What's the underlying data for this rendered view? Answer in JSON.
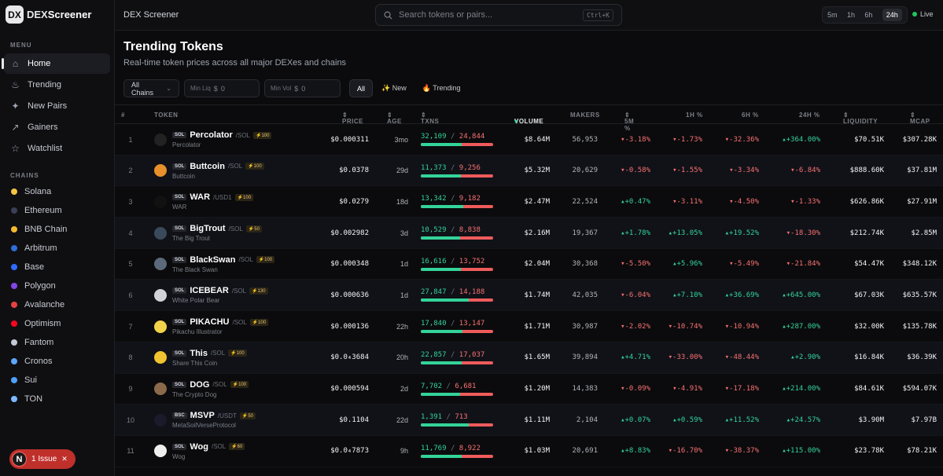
{
  "app": {
    "logo_badge": "DX",
    "logo_dex": "DEX",
    "logo_rest": "Screener",
    "title": "DEX Screener"
  },
  "sidebar": {
    "menu_label": "MENU",
    "menu": [
      {
        "label": "Home",
        "icon": "home-icon",
        "glyph": "⌂",
        "active": true
      },
      {
        "label": "Trending",
        "icon": "flame-icon",
        "glyph": "♨"
      },
      {
        "label": "New Pairs",
        "icon": "sparkle-icon",
        "glyph": "✦"
      },
      {
        "label": "Gainers",
        "icon": "trend-up-icon",
        "glyph": "↗"
      },
      {
        "label": "Watchlist",
        "icon": "star-icon",
        "glyph": "☆"
      }
    ],
    "chains_label": "CHAINS",
    "chains": [
      {
        "label": "Solana",
        "color": "#f5c542"
      },
      {
        "label": "Ethereum",
        "color": "#3b3f57"
      },
      {
        "label": "BNB Chain",
        "color": "#f3ba2f"
      },
      {
        "label": "Arbitrum",
        "color": "#2d6fd6"
      },
      {
        "label": "Base",
        "color": "#2f6bff"
      },
      {
        "label": "Polygon",
        "color": "#8247e5"
      },
      {
        "label": "Avalanche",
        "color": "#e84142"
      },
      {
        "label": "Optimism",
        "color": "#ff0420"
      },
      {
        "label": "Fantom",
        "color": "#c5c9d6"
      },
      {
        "label": "Cronos",
        "color": "#5ea6ff"
      },
      {
        "label": "Sui",
        "color": "#4da2ff"
      },
      {
        "label": "TON",
        "color": "#7fb8ff"
      }
    ],
    "issue": {
      "badge": "N",
      "label": "1 Issue",
      "close": "✕"
    }
  },
  "topbar": {
    "search_placeholder": "Search tokens or pairs...",
    "shortcut": "Ctrl+K",
    "timeframes": [
      "5m",
      "1h",
      "6h",
      "24h"
    ],
    "active_timeframe": "24h",
    "live_label": "Live"
  },
  "header": {
    "title": "Trending Tokens",
    "subtitle": "Real-time token prices across all major DEXes and chains"
  },
  "filters": {
    "chain_select": "All Chains",
    "min_liq_label": "Min Liq",
    "min_liq_prefix": "$",
    "min_liq_value": "0",
    "min_vol_label": "Min Vol",
    "min_vol_prefix": "$",
    "min_vol_value": "0",
    "pills": [
      {
        "label": "All",
        "active": true
      },
      {
        "label": "✨ New"
      },
      {
        "label": "🔥 Trending"
      }
    ]
  },
  "columns": {
    "num": "#",
    "token": "TOKEN",
    "price": "PRICE",
    "age": "AGE",
    "txns": "TXNS",
    "volume": "VOLUME",
    "makers": "MAKERS",
    "m5": "5M %",
    "h1": "1H %",
    "h6": "6H %",
    "h24": "24H %",
    "liquidity": "LIQUIDITY",
    "mcap": "MCAP"
  },
  "rows": [
    {
      "num": "1",
      "chain": "SOL",
      "symbol": "Percolator",
      "quote": "/SOL",
      "boost": "⚡100",
      "name": "Percolator",
      "price": "$0.000311",
      "age": "3mo",
      "buys": "32,109",
      "sells": "24,844",
      "buy_ratio": 0.56,
      "volume": "$8.64M",
      "makers": "56,953",
      "m5": "▾-3.18%",
      "h1": "▾-1.73%",
      "h6": "▾-32.36%",
      "h24": "▴+364.00%",
      "liq": "$70.51K",
      "mcap": "$307.28K",
      "avatar": "#222",
      "m5s": "neg",
      "h1s": "neg",
      "h6s": "neg",
      "h24s": "pos"
    },
    {
      "num": "2",
      "chain": "SOL",
      "symbol": "Buttcoin",
      "quote": "/SOL",
      "boost": "⚡100",
      "name": "Buttcoin",
      "price": "$0.0378",
      "age": "29d",
      "buys": "11,373",
      "sells": "9,256",
      "buy_ratio": 0.55,
      "volume": "$5.32M",
      "makers": "20,629",
      "m5": "▾-0.58%",
      "h1": "▾-1.55%",
      "h6": "▾-3.34%",
      "h24": "▾-6.84%",
      "liq": "$888.60K",
      "mcap": "$37.81M",
      "avatar": "#e8902a",
      "m5s": "neg",
      "h1s": "neg",
      "h6s": "neg",
      "h24s": "neg"
    },
    {
      "num": "3",
      "chain": "SOL",
      "symbol": "WAR",
      "quote": "/USD1",
      "boost": "⚡100",
      "name": "WAR",
      "price": "$0.0279",
      "age": "18d",
      "buys": "13,342",
      "sells": "9,182",
      "buy_ratio": 0.59,
      "volume": "$2.47M",
      "makers": "22,524",
      "m5": "▴+0.47%",
      "h1": "▾-3.11%",
      "h6": "▾-4.50%",
      "h24": "▾-1.33%",
      "liq": "$626.86K",
      "mcap": "$27.91M",
      "avatar": "#111",
      "m5s": "pos",
      "h1s": "neg",
      "h6s": "neg",
      "h24s": "neg"
    },
    {
      "num": "4",
      "chain": "SOL",
      "symbol": "BigTrout",
      "quote": "/SOL",
      "boost": "⚡50",
      "name": "The Big Trout",
      "price": "$0.002982",
      "age": "3d",
      "buys": "10,529",
      "sells": "8,838",
      "buy_ratio": 0.54,
      "volume": "$2.16M",
      "makers": "19,367",
      "m5": "▴+1.78%",
      "h1": "▴+13.05%",
      "h6": "▴+19.52%",
      "h24": "▾-18.30%",
      "liq": "$212.74K",
      "mcap": "$2.85M",
      "avatar": "#3a4a5a",
      "m5s": "pos",
      "h1s": "pos",
      "h6s": "pos",
      "h24s": "neg"
    },
    {
      "num": "5",
      "chain": "SOL",
      "symbol": "BlackSwan",
      "quote": "/SOL",
      "boost": "⚡100",
      "name": "The Black Swan",
      "price": "$0.000348",
      "age": "1d",
      "buys": "16,616",
      "sells": "13,752",
      "buy_ratio": 0.55,
      "volume": "$2.04M",
      "makers": "30,368",
      "m5": "▾-5.50%",
      "h1": "▴+5.96%",
      "h6": "▾-5.49%",
      "h24": "▾-21.84%",
      "liq": "$54.47K",
      "mcap": "$348.12K",
      "avatar": "#5a6a7a",
      "m5s": "neg",
      "h1s": "pos",
      "h6s": "neg",
      "h24s": "neg"
    },
    {
      "num": "6",
      "chain": "SOL",
      "symbol": "ICEBEAR",
      "quote": "/SOL",
      "boost": "⚡130",
      "name": "White Polar Bear",
      "price": "$0.000636",
      "age": "1d",
      "buys": "27,847",
      "sells": "14,188",
      "buy_ratio": 0.66,
      "volume": "$1.74M",
      "makers": "42,035",
      "m5": "▾-6.04%",
      "h1": "▴+7.10%",
      "h6": "▴+36.69%",
      "h24": "▴+645.00%",
      "liq": "$67.03K",
      "mcap": "$635.57K",
      "avatar": "#cfd3d8",
      "m5s": "neg",
      "h1s": "pos",
      "h6s": "pos",
      "h24s": "pos"
    },
    {
      "num": "7",
      "chain": "SOL",
      "symbol": "PIKACHU",
      "quote": "/SOL",
      "boost": "⚡100",
      "name": "Pikachu Illustrator",
      "price": "$0.000136",
      "age": "22h",
      "buys": "17,840",
      "sells": "13,147",
      "buy_ratio": 0.58,
      "volume": "$1.71M",
      "makers": "30,987",
      "m5": "▾-2.02%",
      "h1": "▾-10.74%",
      "h6": "▾-10.94%",
      "h24": "▴+287.00%",
      "liq": "$32.00K",
      "mcap": "$135.78K",
      "avatar": "#f2d14b",
      "m5s": "neg",
      "h1s": "neg",
      "h6s": "neg",
      "h24s": "pos"
    },
    {
      "num": "8",
      "chain": "SOL",
      "symbol": "This",
      "quote": "/SOL",
      "boost": "⚡100",
      "name": "Share This Coin",
      "price": "$0.0₄3684",
      "age": "20h",
      "buys": "22,857",
      "sells": "17,037",
      "buy_ratio": 0.57,
      "volume": "$1.65M",
      "makers": "39,894",
      "m5": "▴+4.71%",
      "h1": "▾-33.00%",
      "h6": "▾-48.44%",
      "h24": "▴+2.90%",
      "liq": "$16.84K",
      "mcap": "$36.39K",
      "avatar": "#f0c330",
      "m5s": "pos",
      "h1s": "neg",
      "h6s": "neg",
      "h24s": "pos"
    },
    {
      "num": "9",
      "chain": "SOL",
      "symbol": "DOG",
      "quote": "/SOL",
      "boost": "⚡100",
      "name": "The Crypto Dog",
      "price": "$0.000594",
      "age": "2d",
      "buys": "7,702",
      "sells": "6,681",
      "buy_ratio": 0.54,
      "volume": "$1.20M",
      "makers": "14,383",
      "m5": "▾-0.09%",
      "h1": "▾-4.91%",
      "h6": "▾-17.18%",
      "h24": "▴+214.00%",
      "liq": "$84.61K",
      "mcap": "$594.07K",
      "avatar": "#8a6a4a",
      "m5s": "neg",
      "h1s": "neg",
      "h6s": "neg",
      "h24s": "pos"
    },
    {
      "num": "10",
      "chain": "BSC",
      "symbol": "MSVP",
      "quote": "/USDT",
      "boost": "⚡50",
      "name": "MetaSoilVerseProtocol",
      "price": "$0.1104",
      "age": "22d",
      "buys": "1,391",
      "sells": "713",
      "buy_ratio": 0.66,
      "volume": "$1.11M",
      "makers": "2,104",
      "m5": "▴+0.07%",
      "h1": "▴+0.59%",
      "h6": "▴+11.52%",
      "h24": "▴+24.57%",
      "liq": "$3.90M",
      "mcap": "$7.97B",
      "avatar": "#1a1a2a",
      "m5s": "pos",
      "h1s": "pos",
      "h6s": "pos",
      "h24s": "pos"
    },
    {
      "num": "11",
      "chain": "SOL",
      "symbol": "Wog",
      "quote": "/SOL",
      "boost": "⚡60",
      "name": "Wog",
      "price": "$0.0₄7873",
      "age": "9h",
      "buys": "11,769",
      "sells": "8,922",
      "buy_ratio": 0.57,
      "volume": "$1.03M",
      "makers": "20,691",
      "m5": "▴+8.83%",
      "h1": "▾-16.70%",
      "h6": "▾-38.37%",
      "h24": "▴+115.00%",
      "liq": "$23.78K",
      "mcap": "$78.21K",
      "avatar": "#eeeeee",
      "m5s": "pos",
      "h1s": "neg",
      "h6s": "neg",
      "h24s": "pos"
    }
  ]
}
